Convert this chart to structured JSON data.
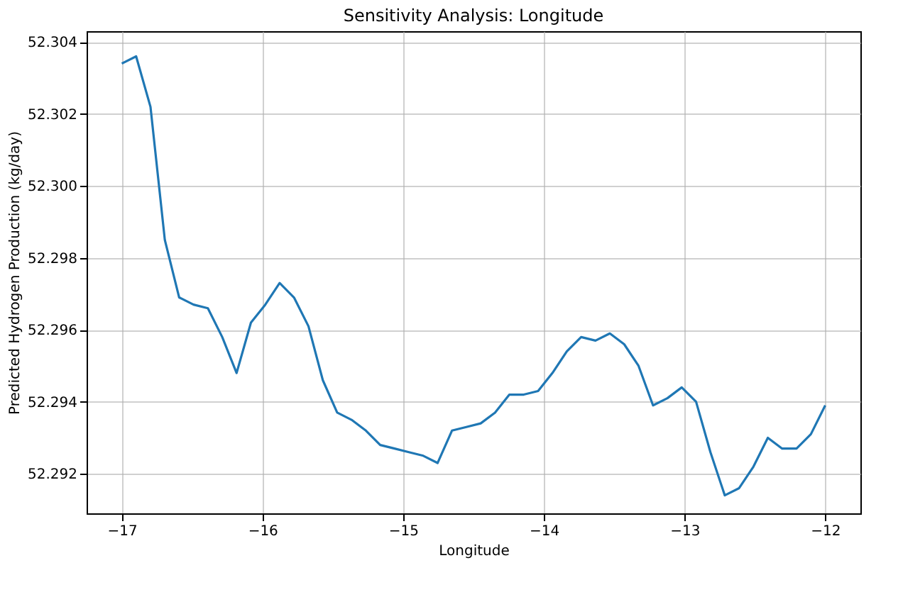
{
  "chart_data": {
    "type": "line",
    "title": "Sensitivity Analysis: Longitude",
    "xlabel": "Longitude",
    "ylabel": "Predicted Hydrogen Production (kg/day)",
    "x": [
      -17.0,
      -16.898,
      -16.796,
      -16.694,
      -16.592,
      -16.49,
      -16.388,
      -16.286,
      -16.184,
      -16.082,
      -15.98,
      -15.878,
      -15.776,
      -15.673,
      -15.571,
      -15.469,
      -15.367,
      -15.265,
      -15.163,
      -15.061,
      -14.959,
      -14.857,
      -14.755,
      -14.653,
      -14.551,
      -14.449,
      -14.347,
      -14.245,
      -14.143,
      -14.041,
      -13.939,
      -13.837,
      -13.735,
      -13.633,
      -13.531,
      -13.429,
      -13.327,
      -13.224,
      -13.122,
      -13.02,
      -12.918,
      -12.816,
      -12.714,
      -12.612,
      -12.51,
      -12.408,
      -12.306,
      -12.204,
      -12.102,
      -12.0
    ],
    "series": [
      {
        "color": "#1f77b4",
        "values": [
          52.3034,
          52.3036,
          52.3022,
          52.2985,
          52.2969,
          52.2967,
          52.2966,
          52.2958,
          52.2948,
          52.2962,
          52.2967,
          52.2973,
          52.2969,
          52.2961,
          52.2946,
          52.2937,
          52.2935,
          52.2932,
          52.2928,
          52.2927,
          52.2926,
          52.2925,
          52.2923,
          52.2932,
          52.2933,
          52.2934,
          52.2937,
          52.2942,
          52.2942,
          52.2943,
          52.2948,
          52.2954,
          52.2958,
          52.2957,
          52.2959,
          52.2956,
          52.295,
          52.2939,
          52.2941,
          52.2944,
          52.294,
          52.2926,
          52.2914,
          52.2916,
          52.2922,
          52.293,
          52.2927,
          52.2927,
          52.2931,
          52.2939
        ]
      }
    ],
    "xlim": [
      -17.25,
      -11.75
    ],
    "xticks": [
      -17,
      -16,
      -15,
      -14,
      -13,
      -12
    ],
    "ylim": [
      52.2909,
      52.3043
    ],
    "yticks": [
      52.292,
      52.294,
      52.296,
      52.298,
      {
        "value": 52.3,
        "label": "52.300"
      },
      52.302,
      52.304
    ],
    "grid": true,
    "marker": "none",
    "line_style": "solid"
  }
}
